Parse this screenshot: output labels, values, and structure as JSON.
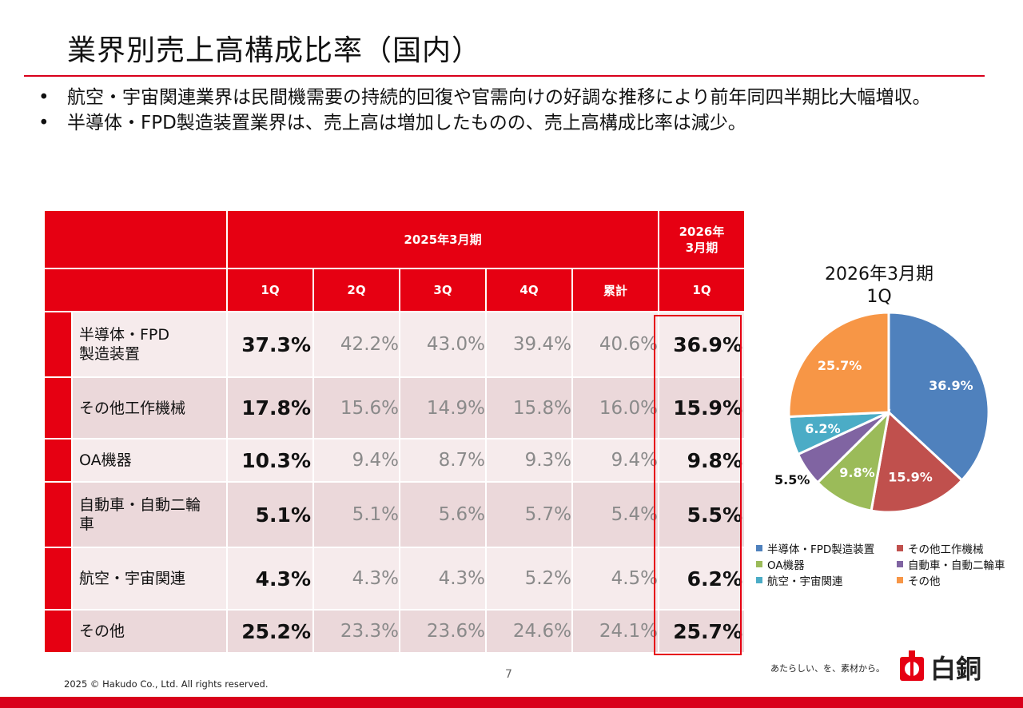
{
  "title": "業界別売上高構成比率（国内）",
  "bullets": [
    "航空・宇宙関連業界は民間機需要の持続的回復や官需向けの好調な推移により前年同四半期比大幅増収。",
    "半導体・FPD製造装置業界は、売上高は増加したものの、売上高構成比率は減少。"
  ],
  "table": {
    "period_prev": "2025年3月期",
    "period_cur_line1": "2026年",
    "period_cur_line2": "3月期",
    "col_headers": [
      "1Q",
      "2Q",
      "3Q",
      "4Q",
      "累計",
      "1Q"
    ],
    "rows": [
      {
        "label1": "半導体・FPD",
        "label2": "製造装置",
        "values": [
          "37.3%",
          "42.2%",
          "43.0%",
          "39.4%",
          "40.6%",
          "36.9%"
        ]
      },
      {
        "label1": "その他工作機械",
        "label2": "",
        "values": [
          "17.8%",
          "15.6%",
          "14.9%",
          "15.8%",
          "16.0%",
          "15.9%"
        ]
      },
      {
        "label1": "OA機器",
        "label2": "",
        "values": [
          "10.3%",
          "9.4%",
          "8.7%",
          "9.3%",
          "9.4%",
          "9.8%"
        ]
      },
      {
        "label1": "自動車・自動二輪",
        "label2": "車",
        "values": [
          "5.1%",
          "5.1%",
          "5.6%",
          "5.7%",
          "5.4%",
          "5.5%"
        ]
      },
      {
        "label1": "航空・宇宙関連",
        "label2": "",
        "values": [
          "4.3%",
          "4.3%",
          "4.3%",
          "5.2%",
          "4.5%",
          "6.2%"
        ]
      },
      {
        "label1": "その他",
        "label2": "",
        "values": [
          "25.2%",
          "23.3%",
          "23.6%",
          "24.6%",
          "24.1%",
          "25.7%"
        ]
      }
    ]
  },
  "pie_title_line1": "2026年3月期",
  "pie_title_line2": "1Q",
  "chart_data": {
    "type": "pie",
    "title": "2026年3月期 1Q",
    "slices": [
      {
        "name": "半導体・FPD製造装置",
        "value": 36.9,
        "label": "36.9%",
        "color": "#4f81bd"
      },
      {
        "name": "その他工作機械",
        "value": 15.9,
        "label": "15.9%",
        "color": "#c0504d"
      },
      {
        "name": "OA機器",
        "value": 9.8,
        "label": "9.8%",
        "color": "#9bbb59"
      },
      {
        "name": "自動車・自動二輪車",
        "value": 5.5,
        "label": "5.5%",
        "color": "#8064a2"
      },
      {
        "name": "航空・宇宙関連",
        "value": 6.2,
        "label": "6.2%",
        "color": "#4bacc6"
      },
      {
        "name": "その他",
        "value": 25.7,
        "label": "25.7%",
        "color": "#f79646"
      }
    ],
    "legend_position": "bottom"
  },
  "footer": {
    "page_number": "7",
    "copyright": "2025 © Hakudo Co., Ltd. All rights reserved.",
    "tagline": "あたらしい、を、素材から。",
    "logo_text": "白銅"
  },
  "colors": {
    "brand_red": "#e60012"
  }
}
